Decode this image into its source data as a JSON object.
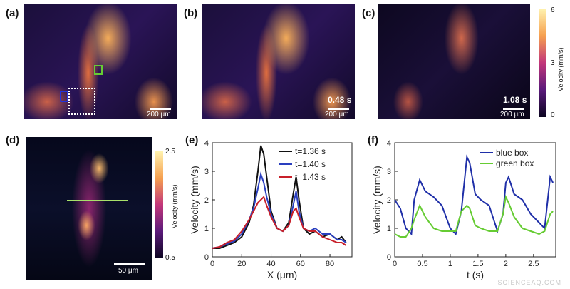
{
  "panels": {
    "a": {
      "label": "(a)",
      "scale": "200 μm",
      "blue_box": "blue box",
      "green_box": "green box"
    },
    "b": {
      "label": "(b)",
      "time": "0.48 s",
      "scale": "200 μm"
    },
    "c": {
      "label": "(c)",
      "time": "1.08 s",
      "scale": "200 μm"
    },
    "d": {
      "label": "(d)",
      "scale": "50 μm"
    },
    "e": {
      "label": "(e)"
    },
    "f": {
      "label": "(f)"
    }
  },
  "colorbar_top": {
    "title": "Velocity (mm/s)",
    "ticks": [
      "6",
      "3",
      "0"
    ],
    "colors": [
      "#fff3b0",
      "#f6a04f",
      "#c2367a",
      "#5a1a7a",
      "#0b0520"
    ]
  },
  "colorbar_bottom": {
    "title": "Velocity (mm/s)",
    "ticks": [
      "2.5",
      "0.5"
    ],
    "colors": [
      "#fff3b0",
      "#f6a04f",
      "#c2367a",
      "#5a1a7a",
      "#0b0520"
    ]
  },
  "chart_data": [
    {
      "type": "line",
      "xlabel": "X (μm)",
      "ylabel": "Velocity (mm/s)",
      "xlim": [
        0,
        95
      ],
      "ylim": [
        0,
        4
      ],
      "xticks": [
        "0",
        "20",
        "40",
        "60",
        "80"
      ],
      "yticks": [
        "0",
        "1",
        "2",
        "3",
        "4"
      ],
      "legend_position": "top-right",
      "series": [
        {
          "name": "t=1.36 s",
          "color": "#111111",
          "x": [
            0,
            5,
            10,
            15,
            20,
            25,
            28,
            31,
            33,
            35,
            37,
            40,
            44,
            48,
            52,
            55,
            57,
            59,
            62,
            66,
            70,
            75,
            80,
            85,
            88,
            91
          ],
          "y": [
            0.3,
            0.3,
            0.4,
            0.5,
            0.7,
            1.2,
            1.8,
            3.0,
            3.9,
            3.6,
            2.8,
            1.6,
            1.0,
            0.9,
            1.2,
            2.2,
            2.8,
            2.0,
            1.0,
            0.8,
            0.9,
            0.7,
            0.8,
            0.6,
            0.7,
            0.5
          ]
        },
        {
          "name": "t=1.40 s",
          "color": "#2a3fbf",
          "x": [
            0,
            5,
            10,
            15,
            20,
            25,
            28,
            31,
            33,
            35,
            37,
            40,
            44,
            48,
            52,
            55,
            57,
            59,
            62,
            66,
            70,
            75,
            80,
            85,
            88,
            91
          ],
          "y": [
            0.3,
            0.35,
            0.45,
            0.55,
            0.8,
            1.3,
            1.7,
            2.4,
            2.9,
            2.6,
            2.1,
            1.5,
            1.0,
            0.9,
            1.1,
            1.8,
            2.3,
            1.6,
            1.0,
            0.9,
            1.0,
            0.8,
            0.8,
            0.6,
            0.6,
            0.5
          ]
        },
        {
          "name": "t=1.43 s",
          "color": "#c8202a",
          "x": [
            0,
            5,
            10,
            15,
            20,
            25,
            28,
            31,
            33,
            35,
            37,
            40,
            44,
            48,
            52,
            55,
            57,
            59,
            62,
            66,
            70,
            75,
            80,
            85,
            88,
            91
          ],
          "y": [
            0.3,
            0.35,
            0.5,
            0.6,
            0.9,
            1.3,
            1.6,
            1.9,
            2.0,
            2.1,
            1.8,
            1.4,
            1.0,
            0.9,
            1.1,
            1.6,
            1.7,
            1.4,
            1.0,
            0.9,
            0.9,
            0.7,
            0.6,
            0.5,
            0.5,
            0.4
          ]
        }
      ]
    },
    {
      "type": "line",
      "xlabel": "t (s)",
      "ylabel": "Velocity (mm/s)",
      "xlim": [
        0,
        2.9
      ],
      "ylim": [
        0,
        4
      ],
      "xticks": [
        "0",
        "0.5",
        "1",
        "1.5",
        "2",
        "2.5"
      ],
      "yticks": [
        "0",
        "1",
        "2",
        "3",
        "4"
      ],
      "legend_position": "top-right",
      "series": [
        {
          "name": "blue box",
          "color": "#1f2fa8",
          "x": [
            0,
            0.1,
            0.2,
            0.3,
            0.35,
            0.45,
            0.55,
            0.7,
            0.85,
            1.0,
            1.1,
            1.2,
            1.3,
            1.35,
            1.45,
            1.55,
            1.7,
            1.85,
            1.95,
            2.0,
            2.05,
            2.15,
            2.3,
            2.45,
            2.6,
            2.7,
            2.8,
            2.85
          ],
          "y": [
            2.0,
            1.7,
            1.0,
            0.8,
            2.0,
            2.7,
            2.3,
            2.1,
            1.8,
            1.0,
            0.8,
            1.6,
            3.5,
            3.3,
            2.2,
            2.0,
            1.8,
            0.9,
            1.5,
            2.6,
            2.8,
            2.2,
            2.0,
            1.5,
            1.2,
            1.0,
            2.8,
            2.6
          ]
        },
        {
          "name": "green box",
          "color": "#66cc33",
          "x": [
            0,
            0.1,
            0.2,
            0.3,
            0.35,
            0.45,
            0.55,
            0.7,
            0.85,
            1.0,
            1.1,
            1.2,
            1.3,
            1.35,
            1.45,
            1.55,
            1.7,
            1.85,
            1.95,
            2.0,
            2.05,
            2.15,
            2.3,
            2.45,
            2.6,
            2.7,
            2.8,
            2.85
          ],
          "y": [
            0.8,
            0.7,
            0.7,
            1.0,
            1.3,
            1.8,
            1.4,
            1.0,
            0.9,
            0.9,
            0.9,
            1.6,
            1.8,
            1.7,
            1.1,
            1.0,
            0.9,
            0.9,
            1.5,
            2.1,
            1.9,
            1.4,
            1.0,
            0.9,
            0.8,
            0.9,
            1.5,
            1.6
          ]
        }
      ]
    }
  ],
  "watermark": "SCIENCEAQ.COM"
}
